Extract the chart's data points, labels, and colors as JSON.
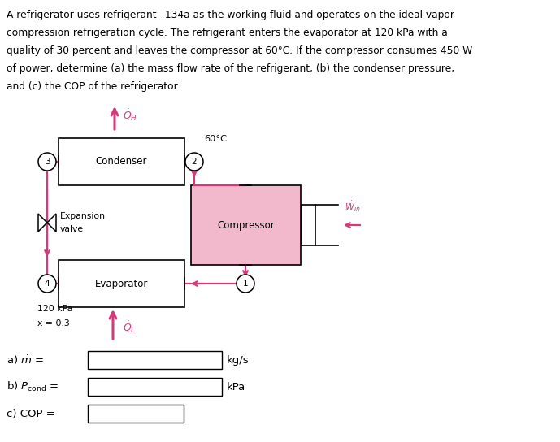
{
  "background_color": "#ffffff",
  "text_color": "#000000",
  "pink_color": "#d4397a",
  "pink_light": "#f2b8cc",
  "problem_text_line1": "A refrigerator uses refrigerant−134a as the working fluid and operates on the ideal vapor",
  "problem_text_line2": "compression refrigeration cycle. The refrigerant enters the evaporator at 120 kPa with a",
  "problem_text_line3": "quality of 30 percent and leaves the compressor at 60°C. If the compressor consumes 450 W",
  "problem_text_line4": "of power, determine (a) the mass flow rate of the refrigerant, (b) the condenser pressure,",
  "problem_text_line5": "and (c) the COP of the refrigerator.",
  "fig_width": 6.89,
  "fig_height": 5.44,
  "dpi": 100
}
